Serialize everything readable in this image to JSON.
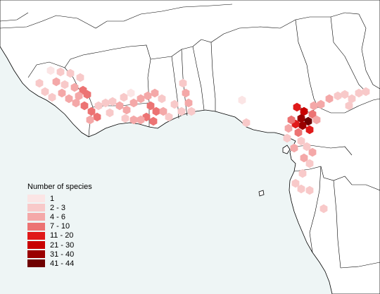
{
  "legend": {
    "title": "Number of species",
    "items": [
      {
        "label": "1",
        "color": "#fbe5e5"
      },
      {
        "label": "2 - 3",
        "color": "#f8c9c9"
      },
      {
        "label": "4 - 6",
        "color": "#f4a8a8"
      },
      {
        "label": "7 - 10",
        "color": "#ec7373"
      },
      {
        "label": "11 - 20",
        "color": "#e01919"
      },
      {
        "label": "21 - 30",
        "color": "#c80000"
      },
      {
        "label": "31 - 40",
        "color": "#9a0000"
      },
      {
        "label": "41 - 44",
        "color": "#6e0000"
      }
    ]
  },
  "colors": {
    "ocean": "#eef5f5",
    "land": "#ffffff",
    "border": "#000000"
  }
}
